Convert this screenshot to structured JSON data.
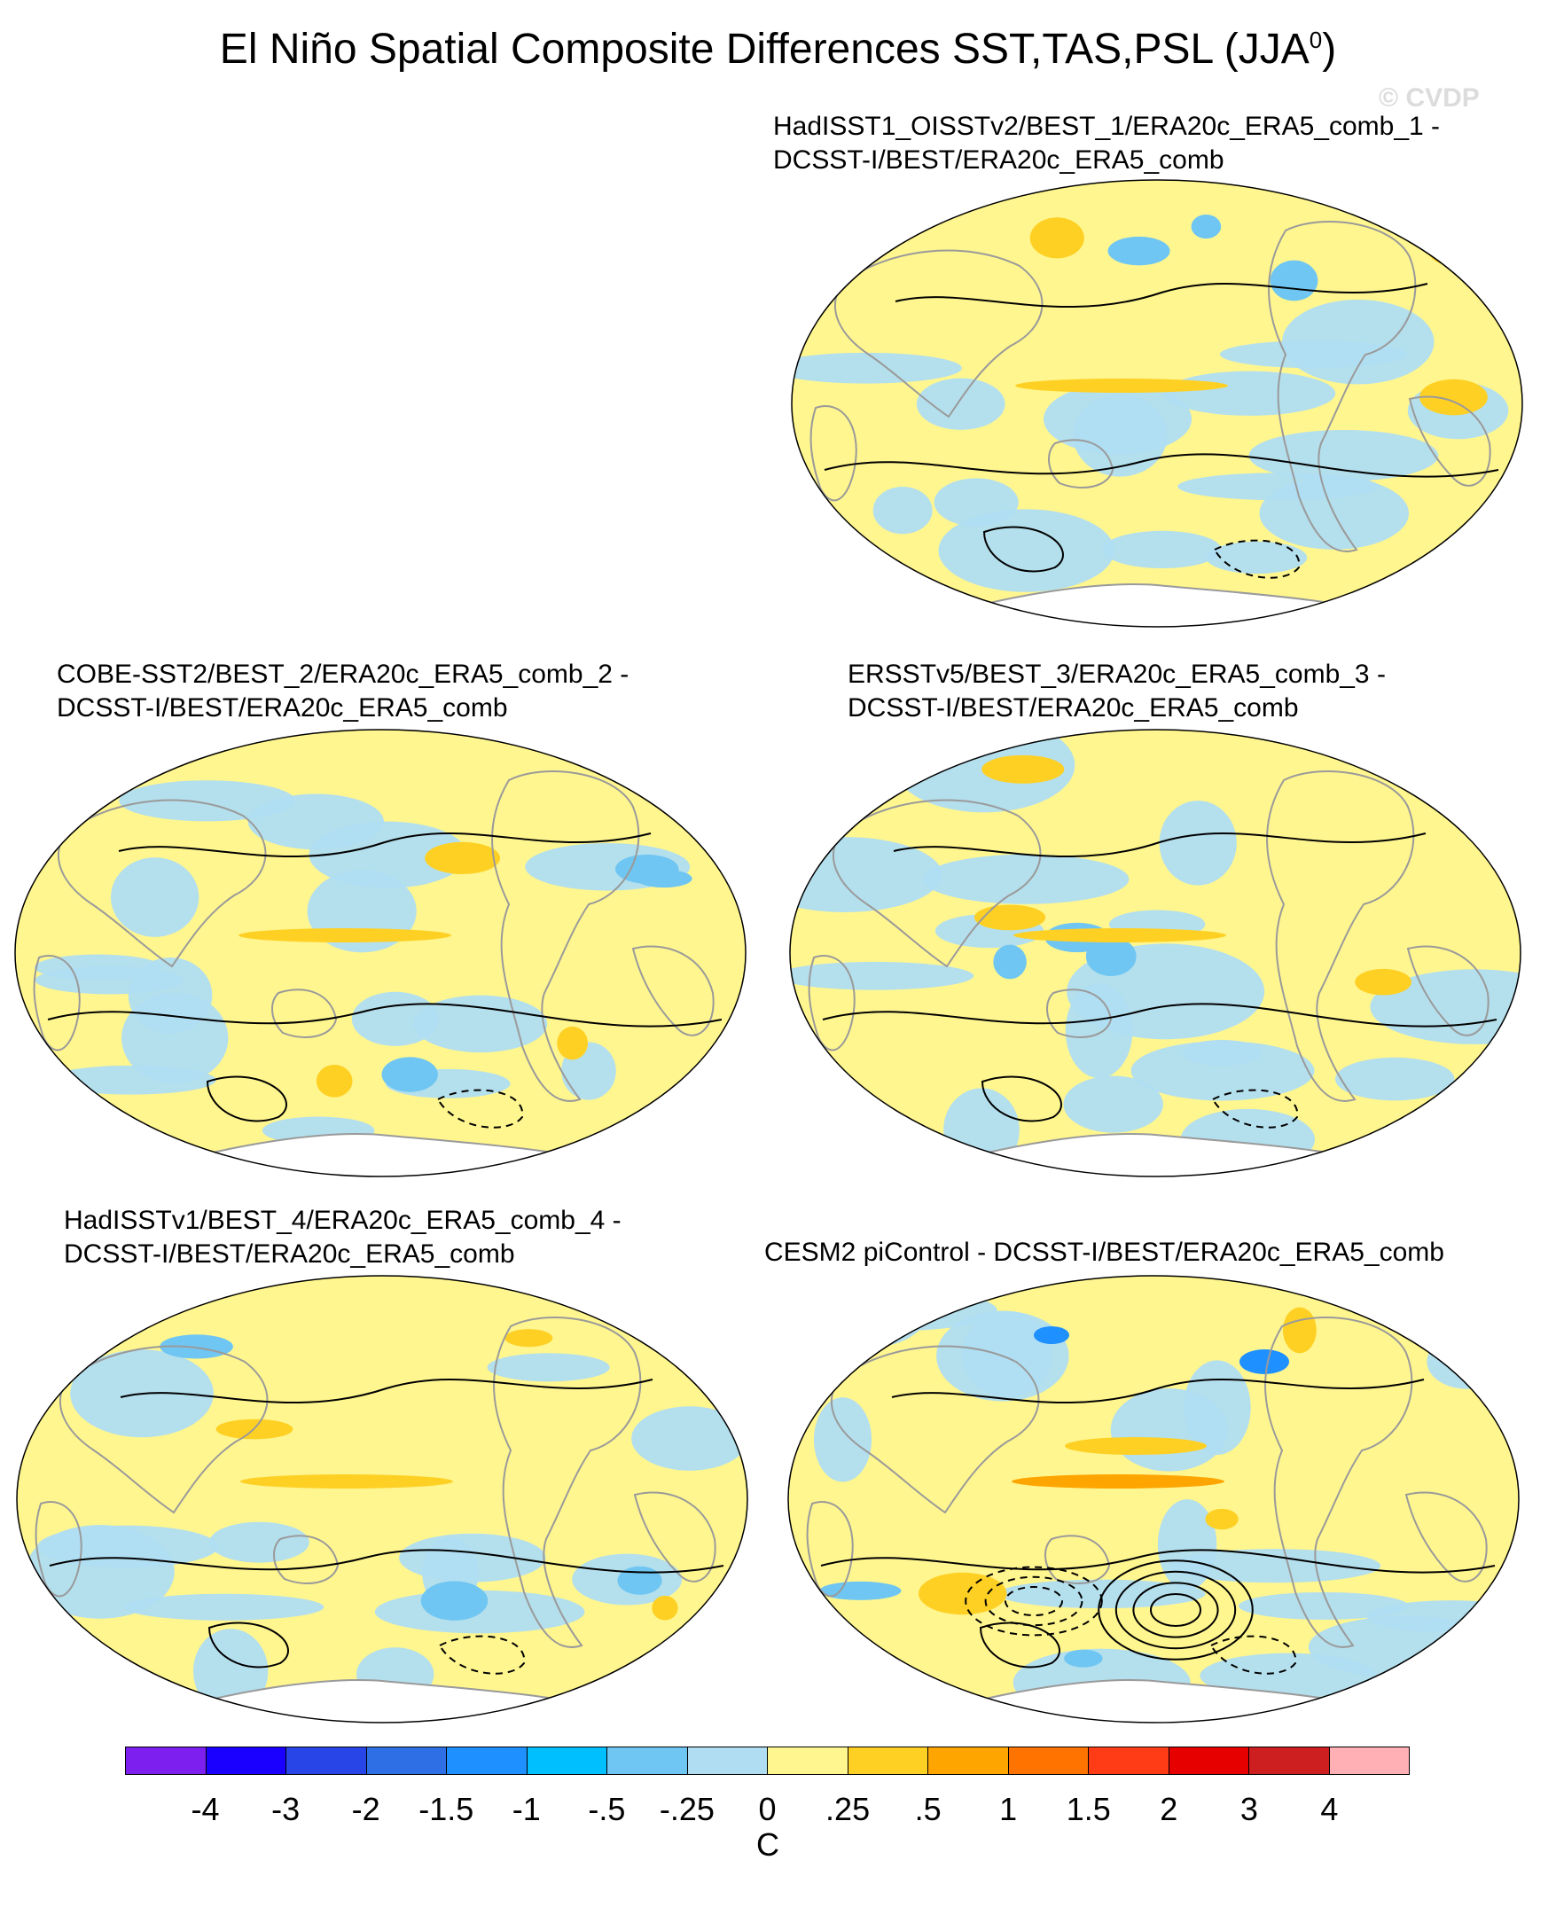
{
  "title": {
    "main": "El Niño Spatial Composite Differences SST,TAS,PSL (JJA",
    "superscript": "0",
    "suffix": ")"
  },
  "watermark": "© CVDP",
  "panels": [
    {
      "id": "p1",
      "line1": "HadISST1_OISSTv2/BEST_1/ERA20c_ERA5_comb_1 -",
      "line2": "DCSST-I/BEST/ERA20c_ERA5_comb"
    },
    {
      "id": "p2",
      "line1": "COBE-SST2/BEST_2/ERA20c_ERA5_comb_2 -",
      "line2": "DCSST-I/BEST/ERA20c_ERA5_comb"
    },
    {
      "id": "p3",
      "line1": "ERSSTv5/BEST_3/ERA20c_ERA5_comb_3 -",
      "line2": "DCSST-I/BEST/ERA20c_ERA5_comb"
    },
    {
      "id": "p4",
      "line1": "HadISSTv1/BEST_4/ERA20c_ERA5_comb_4 -",
      "line2": "DCSST-I/BEST/ERA20c_ERA5_comb"
    },
    {
      "id": "p5",
      "line1": "CESM2 piControl - DCSST-I/BEST/ERA20c_ERA5_comb",
      "line2": ""
    }
  ],
  "colorbar": {
    "units": "C",
    "colors": [
      "#7d1fef",
      "#1a00ff",
      "#2846e8",
      "#2f6fe6",
      "#1e90ff",
      "#00bfff",
      "#6fc6f2",
      "#b0ddf2",
      "#fff68f",
      "#ffd024",
      "#ffa500",
      "#ff7300",
      "#ff3c16",
      "#e60000",
      "#cd1f1f",
      "#ffb0b4"
    ],
    "ticks": [
      "-4",
      "-3",
      "-2",
      "-1.5",
      "-1",
      "-.5",
      "-.25",
      "0",
      ".25",
      ".5",
      "1",
      "1.5",
      "2",
      "3",
      "4"
    ]
  },
  "map_colors": {
    "ocean_warm": "#fff68f",
    "ocean_cool": "#b0ddf2",
    "warm_strong": "#ffd024",
    "warm_stronger": "#ffa500",
    "cool_strong": "#6fc6f2",
    "cool_stronger": "#1e90ff",
    "land_outline": "#9a9a9a",
    "ice": "#ffffff",
    "contour": "#000000"
  }
}
